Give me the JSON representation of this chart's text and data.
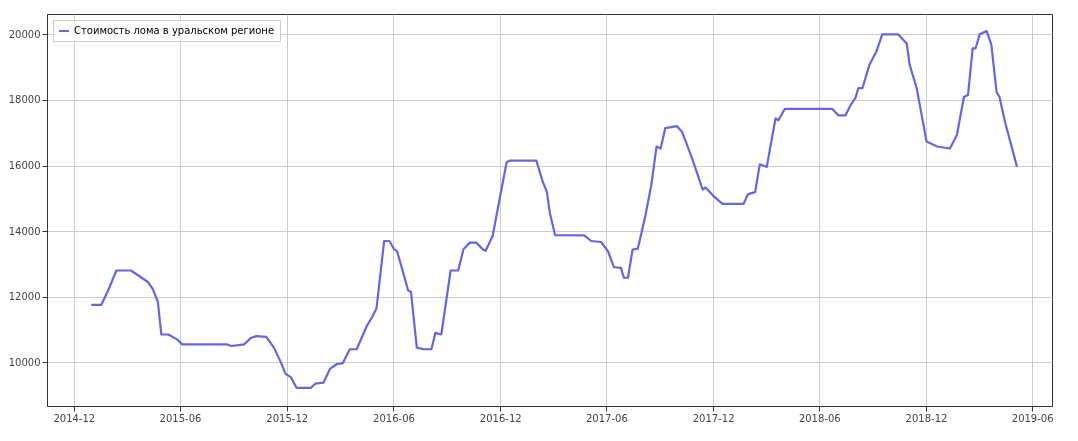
{
  "chart_data": {
    "type": "line",
    "x": [
      "2014-12-31",
      "2015-01-17",
      "2015-01-29",
      "2015-02-12",
      "2015-03-09",
      "2015-04-07",
      "2015-04-15",
      "2015-04-24",
      "2015-04-30",
      "2015-05-12",
      "2015-05-27",
      "2015-06-05",
      "2015-08-20",
      "2015-08-28",
      "2015-09-19",
      "2015-10-01",
      "2015-10-10",
      "2015-10-27",
      "2015-11-09",
      "2015-11-21",
      "2015-11-29",
      "2015-12-08",
      "2015-12-18",
      "2016-01-11",
      "2016-01-19",
      "2016-02-02",
      "2016-02-13",
      "2016-02-25",
      "2016-03-06",
      "2016-03-18",
      "2016-03-30",
      "2016-04-16",
      "2016-04-26",
      "2016-05-03",
      "2016-05-16",
      "2016-05-25",
      "2016-06-02",
      "2016-06-07",
      "2016-06-19",
      "2016-06-26",
      "2016-07-01",
      "2016-07-11",
      "2016-07-23",
      "2016-08-05",
      "2016-08-12",
      "2016-08-22",
      "2016-09-07",
      "2016-09-20",
      "2016-09-29",
      "2016-10-10",
      "2016-10-21",
      "2016-11-01",
      "2016-11-06",
      "2016-11-18",
      "2016-11-30",
      "2016-12-12",
      "2016-12-17",
      "2017-02-01",
      "2017-02-12",
      "2017-02-19",
      "2017-02-24",
      "2017-03-05",
      "2017-04-24",
      "2017-05-06",
      "2017-05-23",
      "2017-06-04",
      "2017-06-14",
      "2017-06-26",
      "2017-07-01",
      "2017-07-08",
      "2017-07-16",
      "2017-07-25",
      "2017-08-07",
      "2017-08-17",
      "2017-08-26",
      "2017-09-02",
      "2017-09-10",
      "2017-09-30",
      "2017-10-09",
      "2017-10-26",
      "2017-11-13",
      "2017-11-18",
      "2017-11-30",
      "2017-12-17",
      "2018-01-22",
      "2018-01-30",
      "2018-02-11",
      "2018-02-19",
      "2018-03-03",
      "2018-03-18",
      "2018-03-23",
      "2018-04-03",
      "2018-06-23",
      "2018-07-04",
      "2018-07-16",
      "2018-07-25",
      "2018-08-02",
      "2018-08-07",
      "2018-08-14",
      "2018-08-26",
      "2018-09-07",
      "2018-09-17",
      "2018-10-14",
      "2018-10-29",
      "2018-11-03",
      "2018-11-15",
      "2018-12-02",
      "2018-12-20",
      "2019-01-11",
      "2019-01-23",
      "2019-02-04",
      "2019-02-11",
      "2019-02-19",
      "2019-02-24",
      "2019-03-03",
      "2019-03-15",
      "2019-03-23",
      "2019-04-01",
      "2019-04-06",
      "2019-04-16",
      "2019-04-21",
      "2019-05-06"
    ],
    "series": [
      {
        "name": "Стоимость лома в уральском регионе",
        "color": "#6666dd",
        "values": [
          11750,
          11750,
          12200,
          12800,
          12800,
          12450,
          12250,
          11850,
          10850,
          10850,
          10700,
          10550,
          10550,
          10500,
          10550,
          10750,
          10800,
          10780,
          10450,
          10000,
          9650,
          9550,
          9220,
          9220,
          9350,
          9380,
          9800,
          9950,
          9970,
          10400,
          10400,
          11100,
          11400,
          11650,
          13700,
          13700,
          13450,
          13400,
          12650,
          12200,
          12150,
          10450,
          10400,
          10400,
          10900,
          10850,
          12800,
          12800,
          13450,
          13650,
          13650,
          13450,
          13400,
          13850,
          14980,
          16100,
          16150,
          16150,
          15500,
          15200,
          14560,
          13880,
          13870,
          13700,
          13670,
          13380,
          12900,
          12880,
          12580,
          12580,
          13440,
          13470,
          14480,
          15400,
          16580,
          16520,
          17140,
          17200,
          17020,
          16220,
          15270,
          15330,
          15100,
          14830,
          14830,
          15130,
          15190,
          16040,
          15960,
          17440,
          17380,
          17730,
          17730,
          17530,
          17530,
          17850,
          18060,
          18360,
          18360,
          19070,
          19480,
          20000,
          20000,
          19720,
          19070,
          18360,
          16730,
          16580,
          16520,
          16930,
          18090,
          18150,
          19570,
          19570,
          20000,
          20100,
          19690,
          18240,
          18090,
          17290,
          16960,
          15960
        ]
      }
    ],
    "xlim": [
      "2014-10-16",
      "2019-07-05"
    ],
    "xticks": [
      {
        "value": "2014-12-01",
        "label": "2014-12"
      },
      {
        "value": "2015-06-01",
        "label": "2015-06"
      },
      {
        "value": "2015-12-01",
        "label": "2015-12"
      },
      {
        "value": "2016-06-01",
        "label": "2016-06"
      },
      {
        "value": "2016-12-01",
        "label": "2016-12"
      },
      {
        "value": "2017-06-01",
        "label": "2017-06"
      },
      {
        "value": "2017-12-01",
        "label": "2017-12"
      },
      {
        "value": "2018-06-01",
        "label": "2018-06"
      },
      {
        "value": "2018-12-01",
        "label": "2018-12"
      },
      {
        "value": "2019-06-01",
        "label": "2019-06"
      }
    ],
    "ylim": [
      8670,
      20620
    ],
    "yticks": [
      10000,
      12000,
      14000,
      16000,
      18000,
      20000
    ],
    "grid": true,
    "legend": "top left"
  }
}
